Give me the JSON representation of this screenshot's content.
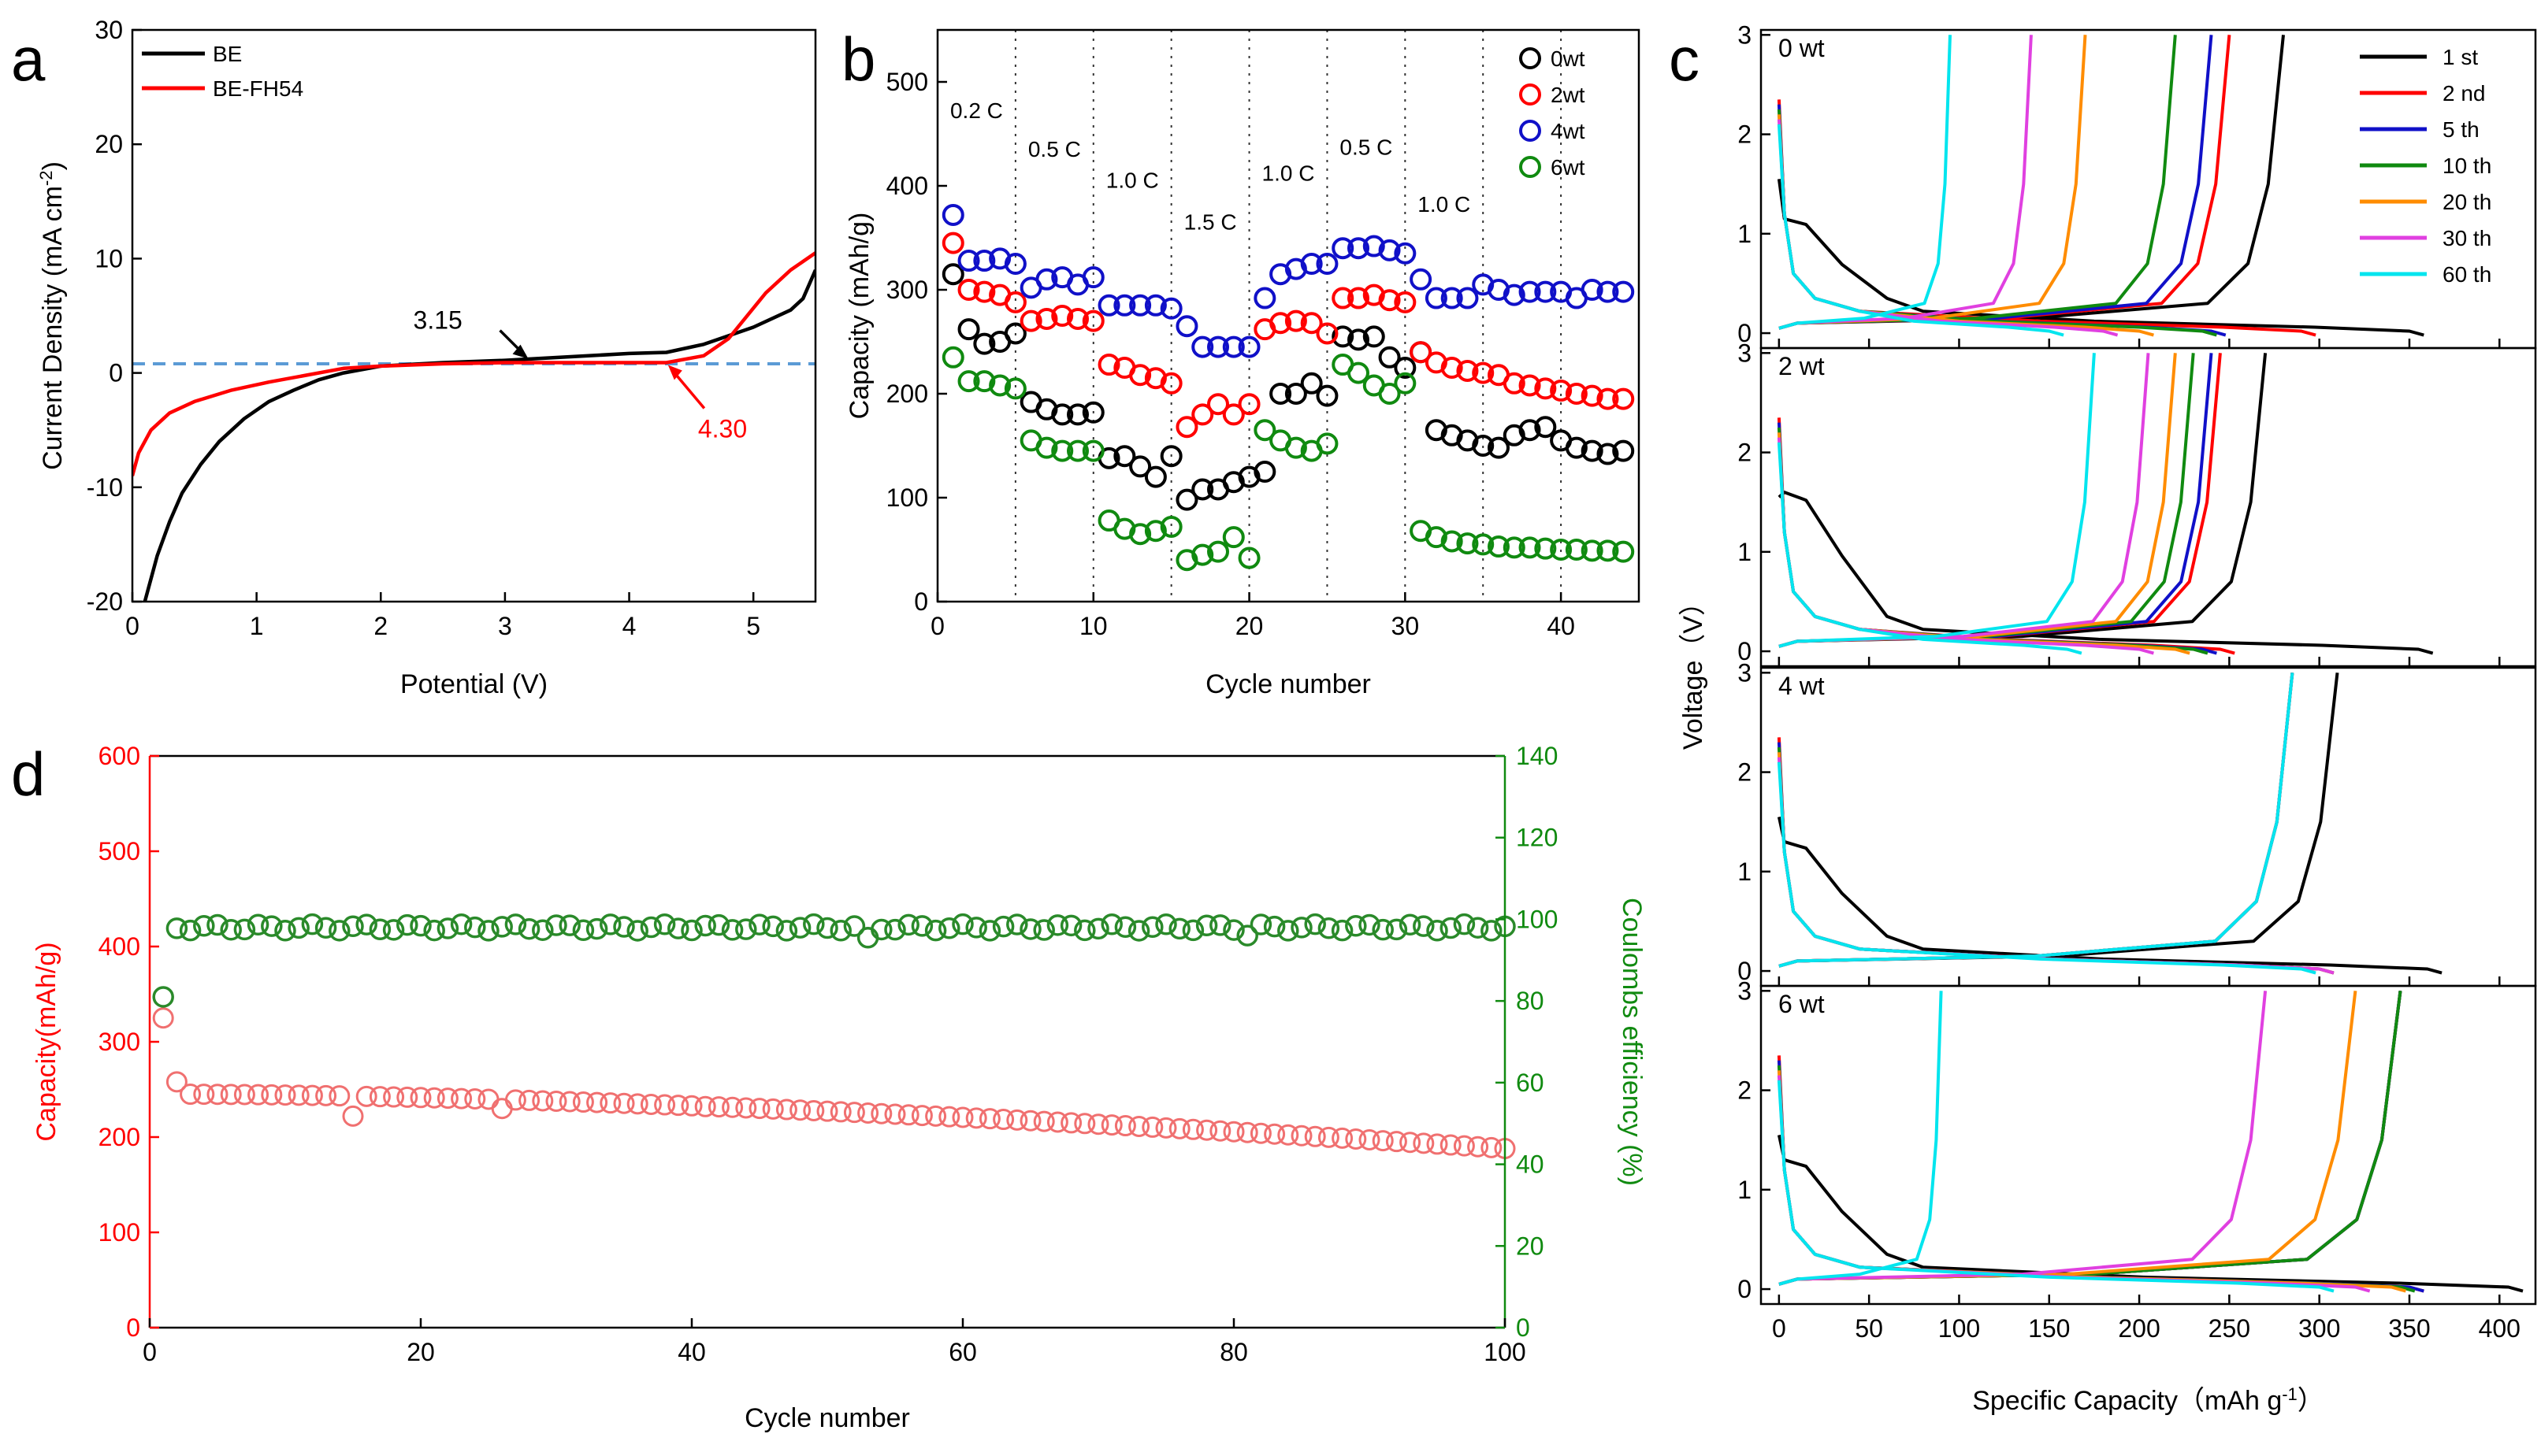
{
  "colors": {
    "black": "#000000",
    "red": "#ff0000",
    "blue": "#1010c8",
    "green": "#108a10",
    "orange": "#ff8c00",
    "magenta": "#e040e0",
    "cyan": "#00e5ee",
    "dash": "#5b9bd5",
    "d_red": "#f07070",
    "d_green": "#2a8a2a"
  },
  "chart_data": [
    {
      "id": "a",
      "type": "line",
      "panel_label": "a",
      "xlabel": "Potential (V)",
      "ylabel": "Current Density (mA cm-2)",
      "ylabel_base": "Current Density (mA cm",
      "ylabel_sup": "-2",
      "ylabel_end": ")",
      "xlim": [
        0,
        5.5
      ],
      "ylim": [
        -20,
        30
      ],
      "xticks": [
        "0",
        "1",
        "2",
        "3",
        "4",
        "5"
      ],
      "yticks": [
        "-20",
        "-10",
        "0",
        "10",
        "20",
        "30"
      ],
      "legend": {
        "entries": [
          "BE",
          "BE-FH54"
        ],
        "position": "top-left"
      },
      "series": [
        {
          "name": "BE",
          "color": "black",
          "points": [
            [
              0.1,
              -20
            ],
            [
              0.2,
              -16
            ],
            [
              0.3,
              -13
            ],
            [
              0.4,
              -10.5
            ],
            [
              0.55,
              -8
            ],
            [
              0.7,
              -6
            ],
            [
              0.9,
              -4
            ],
            [
              1.1,
              -2.5
            ],
            [
              1.3,
              -1.5
            ],
            [
              1.5,
              -0.6
            ],
            [
              1.7,
              0
            ],
            [
              2.0,
              0.6
            ],
            [
              2.5,
              0.9
            ],
            [
              3.0,
              1.1
            ],
            [
              3.5,
              1.4
            ],
            [
              4.0,
              1.7
            ],
            [
              4.3,
              1.8
            ],
            [
              4.6,
              2.5
            ],
            [
              5.0,
              4
            ],
            [
              5.3,
              5.5
            ],
            [
              5.4,
              6.5
            ],
            [
              5.5,
              9
            ]
          ]
        },
        {
          "name": "BE-FH54",
          "color": "red",
          "points": [
            [
              0,
              -9
            ],
            [
              0.05,
              -7
            ],
            [
              0.15,
              -5
            ],
            [
              0.3,
              -3.5
            ],
            [
              0.5,
              -2.5
            ],
            [
              0.8,
              -1.5
            ],
            [
              1.1,
              -0.8
            ],
            [
              1.4,
              -0.2
            ],
            [
              1.7,
              0.4
            ],
            [
              2.0,
              0.6
            ],
            [
              2.5,
              0.8
            ],
            [
              3.0,
              0.9
            ],
            [
              3.5,
              0.9
            ],
            [
              4.0,
              0.9
            ],
            [
              4.3,
              0.9
            ],
            [
              4.6,
              1.5
            ],
            [
              4.8,
              3
            ],
            [
              4.95,
              5
            ],
            [
              5.1,
              7
            ],
            [
              5.3,
              9
            ],
            [
              5.5,
              10.5
            ]
          ]
        }
      ],
      "hline": 0.8,
      "annotations": [
        {
          "text": "3.15",
          "x": 3.15,
          "y": 1.1,
          "color": "black"
        },
        {
          "text": "4.30",
          "x": 4.3,
          "y": 0.9,
          "color": "red"
        }
      ]
    },
    {
      "id": "b",
      "type": "scatter",
      "panel_label": "b",
      "xlabel": "Cycle number",
      "ylabel": "Capacity (mAh/g)",
      "xlim": [
        0,
        45
      ],
      "ylim": [
        0,
        550
      ],
      "xticks": [
        "0",
        "10",
        "20",
        "30",
        "40"
      ],
      "yticks": [
        "0",
        "100",
        "200",
        "300",
        "400",
        "500"
      ],
      "vlines": [
        5,
        10,
        15,
        20,
        25,
        30,
        35,
        40
      ],
      "rate_labels": [
        {
          "text": "0.2 C",
          "x": 2.5,
          "y": 465
        },
        {
          "text": "0.5 C",
          "x": 7.5,
          "y": 428
        },
        {
          "text": "1.0 C",
          "x": 12.5,
          "y": 398
        },
        {
          "text": "1.5 C",
          "x": 17.5,
          "y": 358
        },
        {
          "text": "1.0 C",
          "x": 22.5,
          "y": 405
        },
        {
          "text": "0.5 C",
          "x": 27.5,
          "y": 430
        },
        {
          "text": "1.0 C",
          "x": 32.5,
          "y": 375
        }
      ],
      "legend": {
        "entries": [
          "0wt",
          "2wt",
          "4wt",
          "6wt"
        ],
        "position": "top-right"
      },
      "series": [
        {
          "name": "0wt",
          "color": "black",
          "values": [
            315,
            262,
            248,
            250,
            258,
            192,
            185,
            180,
            180,
            182,
            138,
            140,
            130,
            120,
            140,
            98,
            108,
            108,
            115,
            120,
            125,
            200,
            200,
            210,
            198,
            255,
            252,
            255,
            235,
            225,
            240,
            165,
            160,
            155,
            150,
            148,
            160,
            165,
            168,
            155,
            148,
            145,
            142,
            145
          ]
        },
        {
          "name": "2wt",
          "color": "red",
          "values": [
            345,
            300,
            298,
            295,
            288,
            270,
            272,
            275,
            272,
            270,
            228,
            225,
            218,
            215,
            210,
            168,
            180,
            190,
            180,
            190,
            262,
            268,
            270,
            268,
            258,
            292,
            292,
            295,
            290,
            288,
            240,
            230,
            225,
            222,
            220,
            218,
            210,
            208,
            205,
            203,
            200,
            198,
            195,
            195
          ]
        },
        {
          "name": "4wt",
          "color": "blue",
          "values": [
            372,
            328,
            328,
            330,
            325,
            302,
            310,
            312,
            305,
            312,
            285,
            285,
            285,
            285,
            282,
            265,
            245,
            245,
            245,
            245,
            292,
            315,
            320,
            325,
            325,
            340,
            340,
            342,
            338,
            335,
            310,
            292,
            292,
            292,
            305,
            300,
            295,
            298,
            298,
            298,
            292,
            300,
            298,
            298
          ]
        },
        {
          "name": "6wt",
          "color": "green",
          "values": [
            235,
            212,
            212,
            208,
            205,
            155,
            148,
            145,
            145,
            145,
            78,
            70,
            65,
            68,
            72,
            40,
            45,
            48,
            62,
            42,
            165,
            155,
            148,
            145,
            152,
            228,
            220,
            208,
            200,
            210,
            68,
            62,
            58,
            56,
            55,
            53,
            52,
            52,
            51,
            50,
            50,
            49,
            49,
            48
          ]
        }
      ]
    },
    {
      "id": "c",
      "type": "line",
      "panel_label": "c",
      "xlabel": "Specific Capacity（mAh g-1）",
      "ylabel": "Voltage（V）",
      "xlabel_base": "Specific Capacity（mAh g",
      "xlabel_sup": "-1",
      "xlabel_end": "）",
      "xlim": [
        -10,
        420
      ],
      "ylim": [
        -0.15,
        3.05
      ],
      "xticks": [
        "0",
        "50",
        "100",
        "150",
        "200",
        "250",
        "300",
        "350",
        "400"
      ],
      "yticks": [
        "0",
        "1",
        "2",
        "3"
      ],
      "legend": {
        "entries": [
          "1 st",
          "2 nd",
          "5 th",
          "10 th",
          "20 th",
          "30 th",
          "60 th"
        ],
        "position": "top-right"
      },
      "subplots": [
        {
          "title": "0 wt",
          "charge_end": [
            280,
            250,
            240,
            220,
            170,
            140,
            95
          ],
          "discharge_end": [
            350,
            290,
            240,
            235,
            200,
            180,
            150
          ],
          "first_plateau": 1.15
        },
        {
          "title": "2 wt",
          "charge_end": [
            270,
            245,
            240,
            230,
            220,
            205,
            175
          ],
          "discharge_end": [
            355,
            245,
            235,
            230,
            220,
            200,
            160
          ],
          "first_plateau": 1.6
        },
        {
          "title": "4 wt",
          "charge_end": [
            310,
            285,
            285,
            285,
            285,
            285,
            285
          ],
          "discharge_end": [
            360,
            300,
            300,
            300,
            300,
            300,
            290
          ],
          "first_plateau": 1.3
        },
        {
          "title": "6 wt",
          "charge_end": [
            345,
            345,
            345,
            345,
            320,
            270,
            90
          ],
          "discharge_end": [
            405,
            350,
            350,
            345,
            340,
            320,
            300
          ],
          "first_plateau": 1.3
        }
      ]
    },
    {
      "id": "d",
      "type": "scatter",
      "panel_label": "d",
      "xlabel": "Cycle number",
      "ylabel": "Capacity(mAh/g)",
      "y2label": "Coulombs efficiency (%)",
      "xlim": [
        0,
        100
      ],
      "ylim": [
        0,
        600
      ],
      "y2lim": [
        0,
        140
      ],
      "xticks": [
        "0",
        "20",
        "40",
        "60",
        "80",
        "100"
      ],
      "yticks": [
        "0",
        "100",
        "200",
        "300",
        "400",
        "500",
        "600"
      ],
      "y2ticks": [
        "0",
        "20",
        "40",
        "60",
        "80",
        "100",
        "120",
        "140"
      ],
      "capacity_first": [
        325,
        258
      ],
      "capacity_start": 245,
      "capacity_end": 188,
      "capacity_outliers": [
        [
          15,
          222
        ],
        [
          26,
          230
        ],
        [
          41,
          232
        ]
      ],
      "efficiency_first": 81,
      "efficiency_mean": 98,
      "efficiency_outliers": [
        [
          53,
          95.5
        ],
        [
          81,
          96
        ]
      ]
    }
  ]
}
